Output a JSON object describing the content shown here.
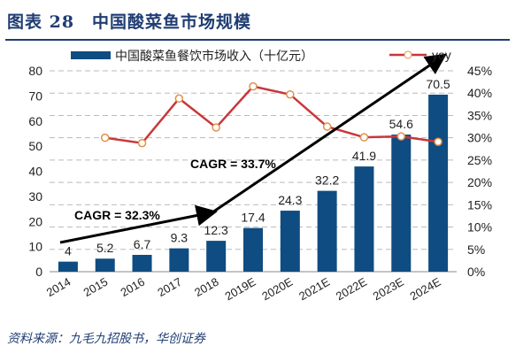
{
  "title": "图表 28　中国酸菜鱼市场规模",
  "source": "资料来源：九毛九招股书，华创证券",
  "chart_data": {
    "type": "bar+line",
    "categories": [
      "2014",
      "2015",
      "2016",
      "2017",
      "2018",
      "2019E",
      "2020E",
      "2021E",
      "2022E",
      "2023E",
      "2024E"
    ],
    "series": [
      {
        "name": "中国酸菜鱼餐饮市场收入（十亿元）",
        "type": "bar",
        "axis": "left",
        "color": "#0f4c81",
        "values": [
          4,
          5.2,
          6.7,
          9.3,
          12.3,
          17.4,
          24.3,
          32.2,
          41.9,
          54.6,
          70.5
        ],
        "labels": [
          "4",
          "5.2",
          "6.7",
          "9.3",
          "12.3",
          "17.4",
          "24.3",
          "32.2",
          "41.9",
          "54.6",
          "70.5"
        ]
      },
      {
        "name": "yoy",
        "type": "line",
        "axis": "right",
        "color": "#c8373a",
        "values": [
          null,
          30.0,
          28.8,
          38.8,
          32.3,
          41.5,
          39.7,
          32.5,
          30.1,
          30.3,
          29.1
        ]
      }
    ],
    "left_axis": {
      "ylim": [
        0,
        80
      ],
      "ticks": [
        "0",
        "10",
        "20",
        "30",
        "40",
        "50",
        "60",
        "70",
        "80"
      ]
    },
    "right_axis": {
      "ylim": [
        0,
        45
      ],
      "ticks": [
        "0%",
        "5%",
        "10%",
        "15%",
        "20%",
        "25%",
        "30%",
        "35%",
        "40%",
        "45%"
      ]
    },
    "annotations": [
      "CAGR = 32.3%",
      "CAGR = 33.7%"
    ],
    "grid": true,
    "legend": "top"
  }
}
